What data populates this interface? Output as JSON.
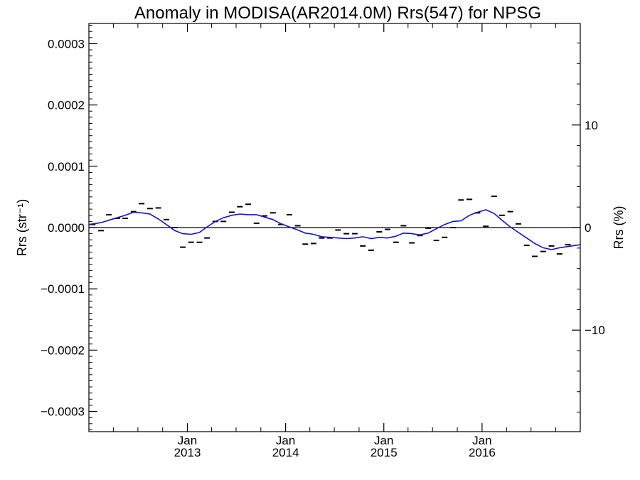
{
  "chart_data": {
    "type": "scatter",
    "title": "Anomaly in MODISA(AR2014.0M) Rrs(547) for NPSG",
    "ylabel_left": "Rrs (str⁻¹)",
    "ylabel_right": "Rrs (%)",
    "x_range": [
      "2012-01-01",
      "2016-12-31"
    ],
    "ylim_left": [
      -0.000333,
      0.000333
    ],
    "ylim_right": [
      -19.9,
      19.9
    ],
    "y_ticks_left": [
      {
        "value": 0.0003,
        "label": "0.0003"
      },
      {
        "value": 0.0002,
        "label": "0.0002"
      },
      {
        "value": 0.0001,
        "label": "0.0001"
      },
      {
        "value": 0,
        "label": "0.0000"
      },
      {
        "value": -0.0001,
        "label": "−0.0001"
      },
      {
        "value": -0.0002,
        "label": "−0.0002"
      },
      {
        "value": -0.0003,
        "label": "−0.0003"
      }
    ],
    "y_ticks_right": [
      {
        "value": 10,
        "label": "10"
      },
      {
        "value": 0,
        "label": "0"
      },
      {
        "value": -10,
        "label": "−10"
      }
    ],
    "x_ticks": [
      {
        "date": "2013-01-01",
        "month": "Jan",
        "year": "2013"
      },
      {
        "date": "2014-01-01",
        "month": "Jan",
        "year": "2014"
      },
      {
        "date": "2015-01-01",
        "month": "Jan",
        "year": "2015"
      },
      {
        "date": "2016-01-01",
        "month": "Jan",
        "year": "2016"
      }
    ],
    "reference_line": 0,
    "grid": false,
    "series": [
      {
        "mark": "dash",
        "color": "#000000",
        "points": [
          {
            "x": "2012-01-15",
            "y": 5e-06
          },
          {
            "x": "2012-02-15",
            "y": -5e-06
          },
          {
            "x": "2012-03-15",
            "y": 2.1e-05
          },
          {
            "x": "2012-04-15",
            "y": 1.5e-05
          },
          {
            "x": "2012-05-15",
            "y": 1.5e-05
          },
          {
            "x": "2012-06-15",
            "y": 2.6e-05
          },
          {
            "x": "2012-07-15",
            "y": 3.9e-05
          },
          {
            "x": "2012-08-15",
            "y": 3.1e-05
          },
          {
            "x": "2012-09-15",
            "y": 3.2e-05
          },
          {
            "x": "2012-10-15",
            "y": 1.3e-05
          },
          {
            "x": "2012-11-15",
            "y": 0.0
          },
          {
            "x": "2012-12-15",
            "y": -3.2e-05
          },
          {
            "x": "2013-01-15",
            "y": -2.4e-05
          },
          {
            "x": "2013-02-15",
            "y": -2.4e-05
          },
          {
            "x": "2013-03-15",
            "y": -1.7e-05
          },
          {
            "x": "2013-04-15",
            "y": 1e-05
          },
          {
            "x": "2013-05-15",
            "y": 1e-05
          },
          {
            "x": "2013-06-15",
            "y": 2.5e-05
          },
          {
            "x": "2013-07-15",
            "y": 3.4e-05
          },
          {
            "x": "2013-08-15",
            "y": 3.8e-05
          },
          {
            "x": "2013-09-15",
            "y": 7e-06
          },
          {
            "x": "2013-10-15",
            "y": 1.9e-05
          },
          {
            "x": "2013-11-15",
            "y": 2.4e-05
          },
          {
            "x": "2013-12-15",
            "y": 5e-06
          },
          {
            "x": "2014-01-15",
            "y": 2.1e-05
          },
          {
            "x": "2014-02-15",
            "y": 3e-06
          },
          {
            "x": "2014-03-15",
            "y": -2.7e-05
          },
          {
            "x": "2014-04-15",
            "y": -2.6e-05
          },
          {
            "x": "2014-05-15",
            "y": -1.7e-05
          },
          {
            "x": "2014-06-15",
            "y": -1.7e-05
          },
          {
            "x": "2014-07-15",
            "y": -4e-06
          },
          {
            "x": "2014-08-15",
            "y": -1e-05
          },
          {
            "x": "2014-09-15",
            "y": -1e-05
          },
          {
            "x": "2014-10-15",
            "y": -3e-05
          },
          {
            "x": "2014-11-15",
            "y": -3.7e-05
          },
          {
            "x": "2014-12-15",
            "y": -7e-06
          },
          {
            "x": "2015-01-15",
            "y": -3e-06
          },
          {
            "x": "2015-02-15",
            "y": -2.4e-05
          },
          {
            "x": "2015-03-15",
            "y": 3e-06
          },
          {
            "x": "2015-04-15",
            "y": -2.5e-05
          },
          {
            "x": "2015-05-15",
            "y": -1.3e-05
          },
          {
            "x": "2015-06-15",
            "y": -1e-06
          },
          {
            "x": "2015-07-15",
            "y": -2.1e-05
          },
          {
            "x": "2015-08-15",
            "y": -1.6e-05
          },
          {
            "x": "2015-09-15",
            "y": 0.0
          },
          {
            "x": "2015-10-15",
            "y": 4.5e-05
          },
          {
            "x": "2015-11-15",
            "y": 4.6e-05
          },
          {
            "x": "2015-12-15",
            "y": 2.4e-05
          },
          {
            "x": "2016-01-15",
            "y": 2e-06
          },
          {
            "x": "2016-02-15",
            "y": 5.1e-05
          },
          {
            "x": "2016-03-15",
            "y": 2e-05
          },
          {
            "x": "2016-04-15",
            "y": 2.6e-05
          },
          {
            "x": "2016-05-15",
            "y": 6e-06
          },
          {
            "x": "2016-06-15",
            "y": -2.9e-05
          },
          {
            "x": "2016-07-15",
            "y": -4.7e-05
          },
          {
            "x": "2016-08-15",
            "y": -3.9e-05
          },
          {
            "x": "2016-09-15",
            "y": -3e-05
          },
          {
            "x": "2016-10-15",
            "y": -4.3e-05
          },
          {
            "x": "2016-11-15",
            "y": -2.8e-05
          }
        ]
      },
      {
        "mark": "line",
        "color": "#1010e0",
        "points": [
          {
            "x": "2012-01-01",
            "y": 5e-06
          },
          {
            "x": "2012-02-15",
            "y": 8e-06
          },
          {
            "x": "2012-03-15",
            "y": 1.2e-05
          },
          {
            "x": "2012-04-15",
            "y": 1.6e-05
          },
          {
            "x": "2012-05-15",
            "y": 2e-05
          },
          {
            "x": "2012-06-15",
            "y": 2.5e-05
          },
          {
            "x": "2012-07-15",
            "y": 2.4e-05
          },
          {
            "x": "2012-08-15",
            "y": 2.2e-05
          },
          {
            "x": "2012-09-15",
            "y": 1.4e-05
          },
          {
            "x": "2012-10-15",
            "y": 5e-06
          },
          {
            "x": "2012-11-15",
            "y": -5e-06
          },
          {
            "x": "2012-12-15",
            "y": -1e-05
          },
          {
            "x": "2013-01-15",
            "y": -1.1e-05
          },
          {
            "x": "2013-02-15",
            "y": -8e-06
          },
          {
            "x": "2013-03-15",
            "y": 1e-06
          },
          {
            "x": "2013-04-15",
            "y": 1e-05
          },
          {
            "x": "2013-05-15",
            "y": 1.6e-05
          },
          {
            "x": "2013-06-15",
            "y": 2e-05
          },
          {
            "x": "2013-07-15",
            "y": 2.2e-05
          },
          {
            "x": "2013-08-15",
            "y": 2.1e-05
          },
          {
            "x": "2013-09-15",
            "y": 2.1e-05
          },
          {
            "x": "2013-10-15",
            "y": 1.7e-05
          },
          {
            "x": "2013-11-15",
            "y": 1.3e-05
          },
          {
            "x": "2013-12-15",
            "y": 6e-06
          },
          {
            "x": "2014-01-15",
            "y": 1e-06
          },
          {
            "x": "2014-02-15",
            "y": -4e-06
          },
          {
            "x": "2014-03-15",
            "y": -9e-06
          },
          {
            "x": "2014-04-15",
            "y": -1.1e-05
          },
          {
            "x": "2014-05-15",
            "y": -1.5e-05
          },
          {
            "x": "2014-06-15",
            "y": -1.6e-05
          },
          {
            "x": "2014-07-15",
            "y": -1.7e-05
          },
          {
            "x": "2014-08-15",
            "y": -1.8e-05
          },
          {
            "x": "2014-09-15",
            "y": -1.7e-05
          },
          {
            "x": "2014-10-15",
            "y": -1.5e-05
          },
          {
            "x": "2014-11-15",
            "y": -1.8e-05
          },
          {
            "x": "2014-12-15",
            "y": -1.6e-05
          },
          {
            "x": "2015-01-15",
            "y": -1.7e-05
          },
          {
            "x": "2015-02-15",
            "y": -1.4e-05
          },
          {
            "x": "2015-03-15",
            "y": -9e-06
          },
          {
            "x": "2015-04-15",
            "y": -1e-05
          },
          {
            "x": "2015-05-15",
            "y": -1.2e-05
          },
          {
            "x": "2015-06-15",
            "y": -9e-06
          },
          {
            "x": "2015-07-15",
            "y": -2e-06
          },
          {
            "x": "2015-08-15",
            "y": 5e-06
          },
          {
            "x": "2015-09-15",
            "y": 1e-05
          },
          {
            "x": "2015-10-15",
            "y": 1.1e-05
          },
          {
            "x": "2015-11-15",
            "y": 2e-05
          },
          {
            "x": "2015-12-15",
            "y": 2.5e-05
          },
          {
            "x": "2016-01-15",
            "y": 2.9e-05
          },
          {
            "x": "2016-02-15",
            "y": 2.3e-05
          },
          {
            "x": "2016-03-15",
            "y": 1.2e-05
          },
          {
            "x": "2016-04-15",
            "y": 1e-06
          },
          {
            "x": "2016-05-15",
            "y": -8e-06
          },
          {
            "x": "2016-06-15",
            "y": -1.7e-05
          },
          {
            "x": "2016-07-15",
            "y": -2.6e-05
          },
          {
            "x": "2016-08-15",
            "y": -3.3e-05
          },
          {
            "x": "2016-09-15",
            "y": -3.6e-05
          },
          {
            "x": "2016-10-15",
            "y": -3.3e-05
          },
          {
            "x": "2016-12-31",
            "y": -2.8e-05
          }
        ]
      }
    ]
  }
}
